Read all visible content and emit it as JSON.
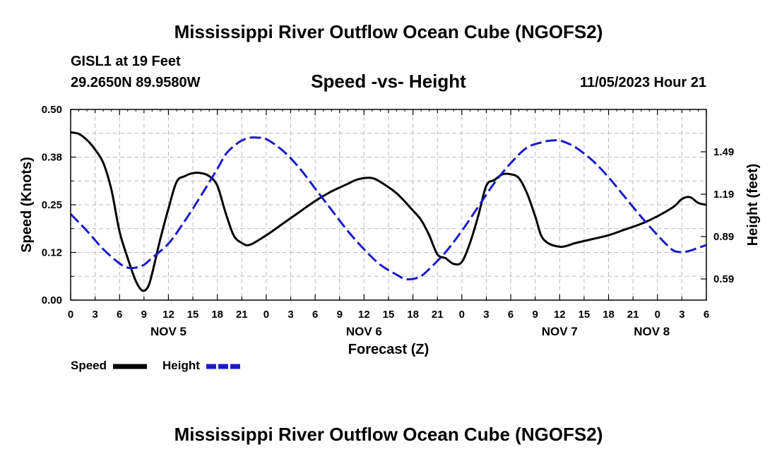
{
  "header": {
    "title": "Mississippi River Outflow Ocean Cube (NGOFS2)",
    "station": "GISL1 at 19 Feet",
    "coords": "29.2650N  89.9580W",
    "subtitle": "Speed -vs- Height",
    "timestamp": "11/05/2023 Hour 21"
  },
  "footer": {
    "title": "Mississippi River Outflow Ocean Cube (NGOFS2)"
  },
  "legend": {
    "speed_label": "Speed",
    "height_label": "Height"
  },
  "chart_data": {
    "type": "line",
    "xlabel": "Forecast (Z)",
    "ylabel_left": "Speed (Knots)",
    "ylabel_right": "Height (feet)",
    "x_range_hours": [
      0,
      78
    ],
    "x_tick_labels": [
      "0",
      "3",
      "6",
      "9",
      "12",
      "15",
      "18",
      "21",
      "0",
      "3",
      "6",
      "9",
      "12",
      "15",
      "18",
      "21",
      "0",
      "3",
      "6",
      "9",
      "12",
      "15",
      "18",
      "21",
      "0",
      "3",
      "6"
    ],
    "date_labels": [
      {
        "label": "NOV 5",
        "hour": 12
      },
      {
        "label": "NOV 6",
        "hour": 36
      },
      {
        "label": "NOV 7",
        "hour": 60
      },
      {
        "label": "NOV 8",
        "hour": 72
      }
    ],
    "ylim_left": [
      0,
      0.5
    ],
    "y_ticks_left": [
      0,
      0.125,
      0.25,
      0.375,
      0.5
    ],
    "y_tick_labels_left": [
      "0.00",
      "0.12",
      "0.25",
      "0.38",
      "0.50"
    ],
    "ylim_right": [
      0.44,
      1.79
    ],
    "y_ticks_right": [
      0.59,
      0.89,
      1.19,
      1.49
    ],
    "y_tick_labels_right": [
      "0.59",
      "0.89",
      "1.19",
      "1.49"
    ],
    "colors": {
      "speed": "#000000",
      "height": "#1a1ac8"
    },
    "series": [
      {
        "name": "Speed",
        "axis": "left",
        "x": [
          0,
          1,
          2,
          3,
          4,
          5,
          6,
          7,
          8,
          8.8,
          9.5,
          10,
          11,
          12,
          13,
          14,
          15,
          16,
          17,
          18,
          19,
          20,
          21,
          22,
          24,
          26,
          28,
          30,
          32,
          34,
          35,
          36,
          37,
          38,
          40,
          42,
          43,
          44,
          45,
          46,
          47,
          48,
          49,
          50,
          51,
          52,
          53,
          54,
          55,
          56,
          57,
          58,
          60,
          62,
          64,
          66,
          68,
          70,
          72,
          74,
          75,
          76,
          77,
          78
        ],
        "values": [
          0.44,
          0.436,
          0.42,
          0.395,
          0.36,
          0.29,
          0.18,
          0.11,
          0.05,
          0.025,
          0.035,
          0.07,
          0.16,
          0.24,
          0.31,
          0.325,
          0.333,
          0.333,
          0.325,
          0.3,
          0.23,
          0.17,
          0.15,
          0.145,
          0.17,
          0.2,
          0.23,
          0.26,
          0.285,
          0.305,
          0.315,
          0.32,
          0.32,
          0.31,
          0.28,
          0.235,
          0.21,
          0.17,
          0.12,
          0.11,
          0.095,
          0.1,
          0.15,
          0.22,
          0.3,
          0.315,
          0.33,
          0.33,
          0.32,
          0.28,
          0.22,
          0.16,
          0.14,
          0.15,
          0.16,
          0.17,
          0.185,
          0.2,
          0.22,
          0.245,
          0.265,
          0.27,
          0.255,
          0.25
        ]
      },
      {
        "name": "Height",
        "axis": "right",
        "x": [
          0,
          2,
          4,
          6,
          7,
          8,
          9,
          10,
          12,
          14,
          16,
          18,
          19,
          20,
          21,
          22,
          23,
          24,
          26,
          28,
          30,
          32,
          34,
          36,
          38,
          40,
          41,
          42,
          43,
          44,
          46,
          48,
          50,
          52,
          54,
          56,
          58,
          59,
          60,
          61,
          62,
          64,
          66,
          68,
          70,
          72,
          73,
          74,
          75,
          76,
          77,
          78
        ],
        "values": [
          1.05,
          0.93,
          0.8,
          0.7,
          0.67,
          0.67,
          0.69,
          0.74,
          0.84,
          1.0,
          1.18,
          1.37,
          1.47,
          1.53,
          1.57,
          1.59,
          1.59,
          1.58,
          1.5,
          1.38,
          1.23,
          1.08,
          0.93,
          0.8,
          0.69,
          0.62,
          0.59,
          0.59,
          0.61,
          0.66,
          0.78,
          0.93,
          1.1,
          1.27,
          1.41,
          1.52,
          1.56,
          1.57,
          1.57,
          1.55,
          1.52,
          1.43,
          1.31,
          1.17,
          1.03,
          0.9,
          0.84,
          0.79,
          0.78,
          0.79,
          0.81,
          0.83
        ]
      }
    ]
  }
}
